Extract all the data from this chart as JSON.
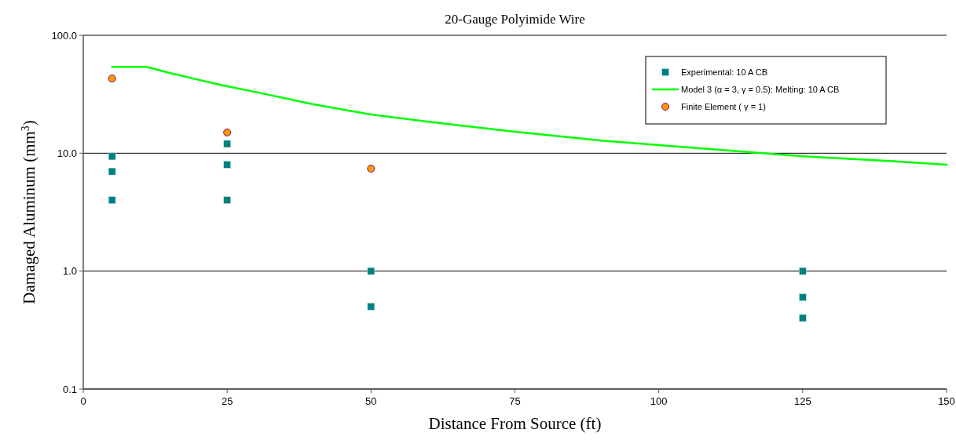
{
  "chart_data": {
    "type": "scatter",
    "title": "20-Gauge Polyimide Wire",
    "xlabel": "Distance From Source (ft)",
    "ylabel": "Damaged Aluminum (mm$^{3}$)",
    "xlim": [
      0,
      150
    ],
    "xticks": [
      0,
      25,
      50,
      75,
      100,
      125,
      150
    ],
    "ylim": [
      0.1,
      100
    ],
    "yticks": [
      {
        "value": 0.1,
        "label": "0.1"
      },
      {
        "value": 1,
        "label": "1.0"
      },
      {
        "value": 10,
        "label": "10.0"
      },
      {
        "value": 100,
        "label": "100.0"
      }
    ],
    "log": "y",
    "grid": "y",
    "legend": "top right",
    "series": [
      {
        "name": "Experimental: 10 A CB",
        "marker": "square",
        "color": "#008080",
        "x": [
          5,
          5,
          5,
          25,
          25,
          25,
          50,
          50,
          125,
          125,
          125
        ],
        "values": [
          9.4,
          7,
          4,
          12,
          8,
          4,
          1,
          0.5,
          1,
          0.6,
          0.4
        ]
      },
      {
        "name": "Model 3 (α = 3, γ = 0.5): Melting: 10 A CB",
        "type": "line",
        "marker": "none",
        "color": "#00ff00",
        "x": [
          5,
          11,
          15,
          20,
          25,
          30,
          40,
          50,
          60,
          75,
          90,
          100,
          118,
          125,
          140,
          150
        ],
        "values": [
          54,
          54,
          48,
          42,
          37,
          33,
          26,
          21.3,
          18.5,
          15.2,
          12.8,
          11.7,
          10,
          9.4,
          8.6,
          8
        ]
      },
      {
        "name": "Finite Element ( γ = 1)",
        "marker": "circle",
        "color": "#ff9900",
        "x": [
          5,
          25,
          50
        ],
        "values": [
          43,
          15,
          7.4
        ]
      }
    ]
  }
}
